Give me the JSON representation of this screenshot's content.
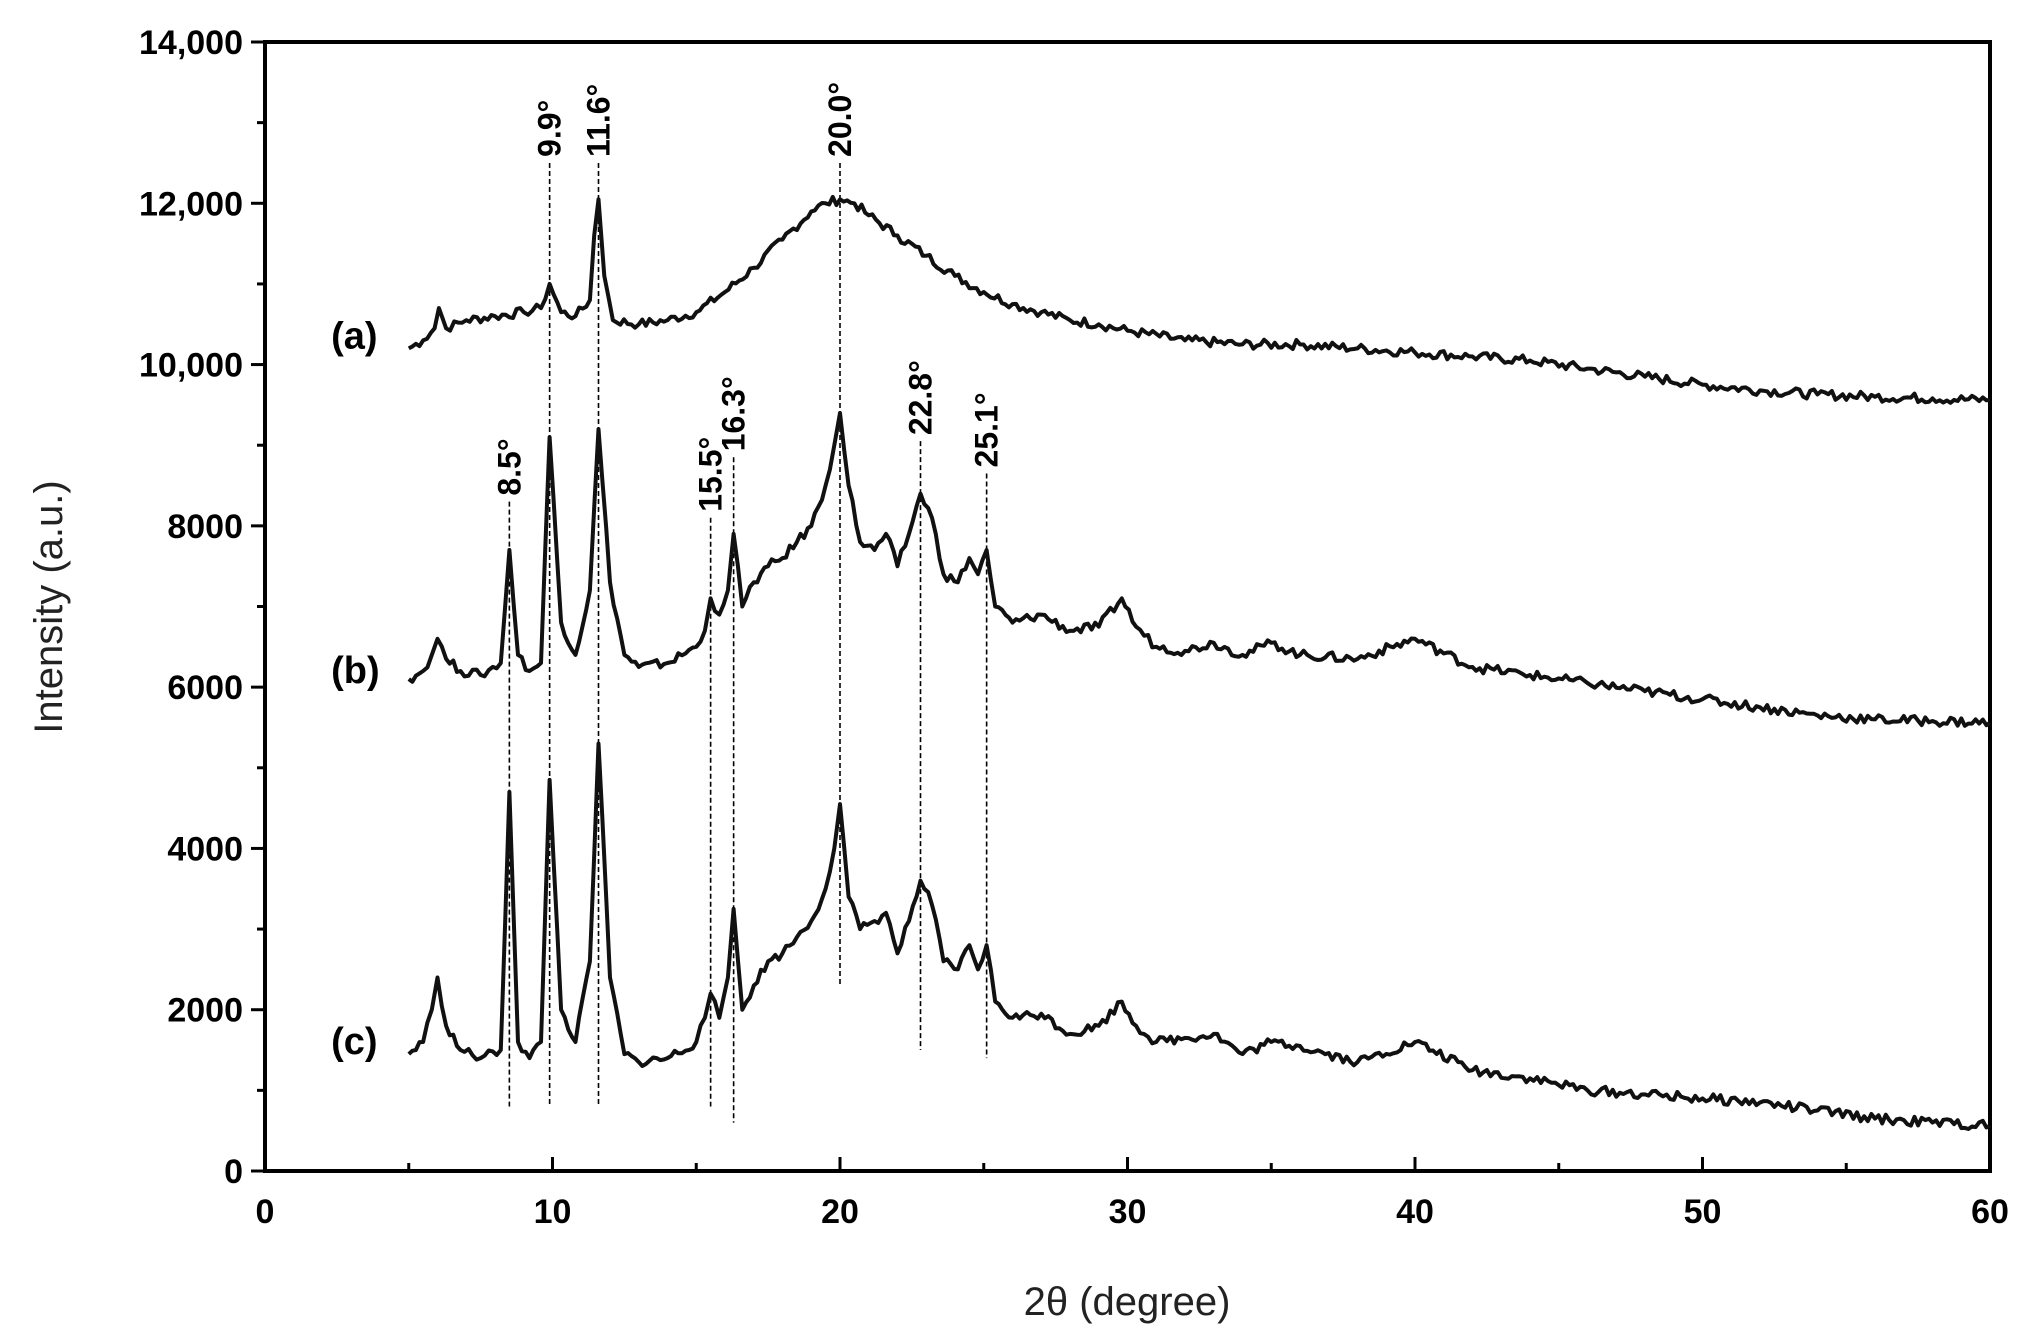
{
  "chart_data": {
    "type": "line",
    "xlabel": "2θ (degree)",
    "ylabel": "Intensity (a.u.)",
    "xlim": [
      0,
      60
    ],
    "ylim": [
      0,
      14000
    ],
    "x_ticks": [
      0,
      10,
      20,
      30,
      40,
      50,
      60
    ],
    "y_ticks": [
      {
        "value": 0,
        "label": "0"
      },
      {
        "value": 2000,
        "label": "2000"
      },
      {
        "value": 4000,
        "label": "4000"
      },
      {
        "value": 6000,
        "label": "6000"
      },
      {
        "value": 8000,
        "label": "8000"
      },
      {
        "value": 10000,
        "label": "10,000"
      },
      {
        "value": 12000,
        "label": "12,000"
      },
      {
        "value": 14000,
        "label": "14,000"
      }
    ],
    "grid": false,
    "series": [
      {
        "name": "(a)",
        "label_x": 2.3,
        "label_y": 10200,
        "x": [
          5,
          5.5,
          5.9,
          6.05,
          6.3,
          7,
          8,
          9,
          9.6,
          9.9,
          10.3,
          10.8,
          11.3,
          11.45,
          11.6,
          11.8,
          12.1,
          13,
          14,
          15,
          16,
          17,
          18,
          19,
          19.5,
          20,
          20.5,
          21,
          22,
          23,
          24,
          25,
          26,
          27,
          28,
          29,
          30,
          32,
          34,
          36,
          38,
          40,
          42,
          44,
          46,
          48,
          50,
          52,
          54,
          56,
          58,
          60
        ],
        "y": [
          10200,
          10300,
          10450,
          10700,
          10450,
          10550,
          10600,
          10650,
          10700,
          11000,
          10650,
          10600,
          10800,
          11600,
          12050,
          11100,
          10550,
          10500,
          10550,
          10650,
          10900,
          11200,
          11550,
          11900,
          12000,
          12050,
          12000,
          11850,
          11600,
          11350,
          11100,
          10900,
          10750,
          10650,
          10550,
          10500,
          10420,
          10300,
          10250,
          10250,
          10200,
          10150,
          10100,
          10050,
          9950,
          9850,
          9750,
          9680,
          9630,
          9600,
          9580,
          9560
        ]
      },
      {
        "name": "(b)",
        "label_x": 2.3,
        "label_y": 6050,
        "x": [
          5,
          5.5,
          5.8,
          6.0,
          6.3,
          6.8,
          7.5,
          8.2,
          8.5,
          8.8,
          9.2,
          9.6,
          9.9,
          10.3,
          10.8,
          11.3,
          11.6,
          12.0,
          12.5,
          13,
          14,
          15,
          15.3,
          15.5,
          15.8,
          16.1,
          16.3,
          16.6,
          17,
          17.5,
          18,
          18.5,
          19,
          19.5,
          19.8,
          20.0,
          20.3,
          20.7,
          21.2,
          21.6,
          22,
          22.4,
          22.8,
          23.2,
          23.6,
          24.1,
          24.5,
          24.8,
          25.1,
          25.4,
          26,
          27,
          28,
          29,
          29.8,
          30.3,
          31,
          32,
          33,
          34,
          35,
          36,
          38,
          40,
          42,
          44,
          46,
          48,
          50,
          52,
          54,
          56,
          58,
          60
        ],
        "y": [
          6100,
          6200,
          6400,
          6600,
          6350,
          6200,
          6150,
          6300,
          7700,
          6400,
          6200,
          6300,
          9100,
          6800,
          6400,
          7200,
          9200,
          7300,
          6400,
          6250,
          6300,
          6500,
          6700,
          7100,
          6900,
          7200,
          7900,
          7000,
          7300,
          7500,
          7600,
          7800,
          8000,
          8500,
          9000,
          9400,
          8500,
          7800,
          7700,
          7900,
          7500,
          7900,
          8400,
          8100,
          7400,
          7300,
          7600,
          7400,
          7700,
          7000,
          6800,
          6900,
          6700,
          6750,
          7100,
          6750,
          6500,
          6450,
          6550,
          6400,
          6550,
          6400,
          6350,
          6600,
          6250,
          6150,
          6050,
          5950,
          5850,
          5750,
          5650,
          5600,
          5580,
          5560
        ]
      },
      {
        "name": "(c)",
        "label_x": 2.3,
        "label_y": 1450,
        "x": [
          5,
          5.5,
          5.8,
          6.0,
          6.3,
          6.8,
          7.5,
          8.2,
          8.5,
          8.8,
          9.2,
          9.6,
          9.9,
          10.3,
          10.8,
          11.3,
          11.6,
          12.0,
          12.5,
          13,
          14,
          15,
          15.3,
          15.5,
          15.8,
          16.1,
          16.3,
          16.6,
          17,
          17.5,
          18,
          18.5,
          19,
          19.5,
          19.8,
          20.0,
          20.3,
          20.7,
          21.2,
          21.6,
          22,
          22.4,
          22.8,
          23.2,
          23.6,
          24.1,
          24.5,
          24.8,
          25.1,
          25.4,
          26,
          27,
          28,
          29,
          29.8,
          30.3,
          31,
          32,
          33,
          34,
          35,
          36,
          38,
          40,
          42,
          44,
          46,
          48,
          50,
          52,
          54,
          56,
          58,
          60
        ],
        "y": [
          1450,
          1600,
          2000,
          2400,
          1800,
          1500,
          1400,
          1500,
          4700,
          1600,
          1400,
          1600,
          4850,
          2000,
          1600,
          2600,
          5300,
          2400,
          1450,
          1350,
          1400,
          1600,
          1900,
          2200,
          1900,
          2400,
          3250,
          2000,
          2300,
          2600,
          2700,
          2900,
          3100,
          3500,
          4000,
          4550,
          3400,
          3000,
          3100,
          3200,
          2700,
          3100,
          3600,
          3300,
          2600,
          2500,
          2800,
          2500,
          2800,
          2100,
          1900,
          1950,
          1700,
          1800,
          2100,
          1800,
          1600,
          1650,
          1700,
          1450,
          1600,
          1550,
          1350,
          1600,
          1250,
          1150,
          1000,
          950,
          900,
          850,
          750,
          650,
          600,
          560
        ]
      }
    ],
    "annotations": [
      {
        "label": "8.5°",
        "x": 8.5,
        "top": 8300,
        "bottom": 800
      },
      {
        "label": "9.9°",
        "x": 9.9,
        "top": 12500,
        "bottom": 800
      },
      {
        "label": "11.6°",
        "x": 11.6,
        "top": 12500,
        "bottom": 800
      },
      {
        "label": "15.5°",
        "x": 15.5,
        "top": 8100,
        "bottom": 800
      },
      {
        "label": "16.3°",
        "x": 16.3,
        "top": 8850,
        "bottom": 600
      },
      {
        "label": "20.0°",
        "x": 20.0,
        "top": 12500,
        "bottom": 2300
      },
      {
        "label": "22.8°",
        "x": 22.8,
        "top": 9050,
        "bottom": 1500
      },
      {
        "label": "25.1°",
        "x": 25.1,
        "top": 8650,
        "bottom": 1400
      }
    ]
  }
}
